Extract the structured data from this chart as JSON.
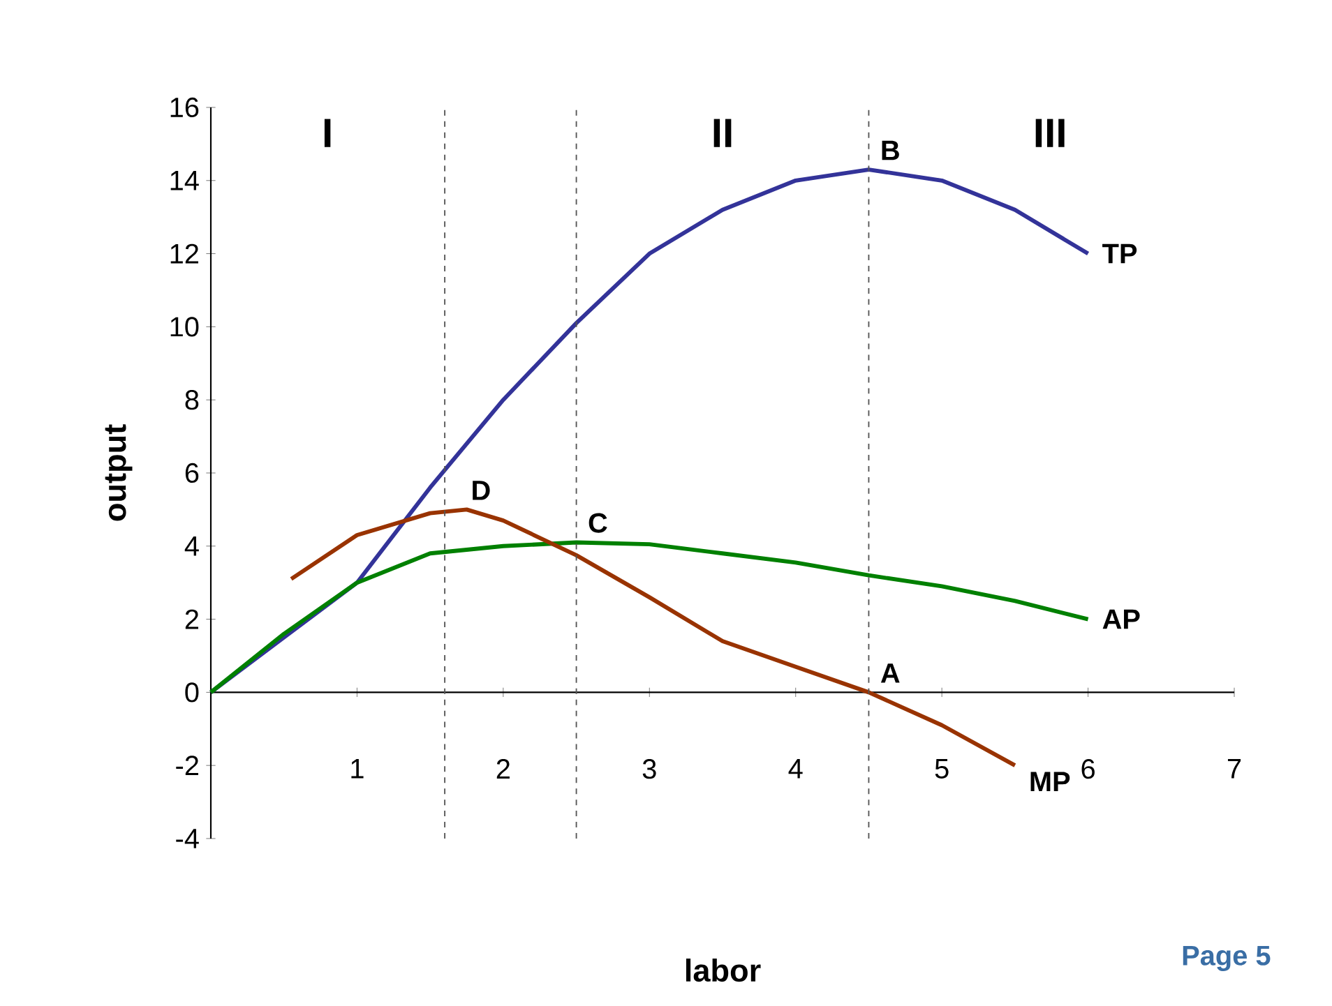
{
  "chart_data": {
    "type": "line",
    "xlabel": "labor",
    "ylabel": "output",
    "xlim": [
      0,
      7
    ],
    "ylim": [
      -4,
      16
    ],
    "xticks": [
      1,
      2,
      3,
      4,
      5,
      6,
      7
    ],
    "yticks": [
      -4,
      -2,
      0,
      2,
      4,
      6,
      8,
      10,
      12,
      14,
      16
    ],
    "grid": false,
    "legend": false,
    "marker": "none",
    "series": [
      {
        "name": "TP",
        "color": "#333399",
        "x": [
          0,
          0.5,
          1,
          1.5,
          2,
          2.5,
          3,
          3.5,
          4,
          4.5,
          5,
          5.5,
          6
        ],
        "values": [
          0,
          1.5,
          3,
          5.6,
          8,
          10.1,
          12,
          13.2,
          14,
          14.3,
          14,
          13.2,
          12
        ]
      },
      {
        "name": "AP",
        "color": "#008000",
        "x": [
          0,
          0.5,
          1,
          1.5,
          2,
          2.5,
          3,
          3.5,
          4,
          4.5,
          5,
          5.5,
          6
        ],
        "values": [
          0,
          1.6,
          3,
          3.8,
          4,
          4.1,
          4.05,
          3.8,
          3.55,
          3.2,
          2.9,
          2.5,
          2
        ]
      },
      {
        "name": "MP",
        "color": "#993300",
        "x": [
          0.55,
          1,
          1.5,
          1.75,
          2,
          2.5,
          3,
          3.5,
          4,
          4.5,
          5,
          5.5
        ],
        "values": [
          3.1,
          4.3,
          4.9,
          5,
          4.7,
          3.75,
          2.6,
          1.4,
          0.7,
          0,
          -0.9,
          -2
        ]
      }
    ],
    "ref_lines": [
      {
        "axis": "x",
        "value": 1.6,
        "color": "#555555",
        "line_style": "dashed"
      },
      {
        "axis": "x",
        "value": 2.5,
        "color": "#555555",
        "line_style": "dashed"
      },
      {
        "axis": "x",
        "value": 4.5,
        "color": "#555555",
        "line_style": "dashed"
      }
    ],
    "annotations": [
      "I",
      "II",
      "III",
      {
        "text": "B",
        "x": 4.5,
        "y": 14.3
      },
      {
        "text": "D",
        "x": 1.7,
        "y": 5
      },
      {
        "text": "C",
        "x": 2.5,
        "y": 4.1
      },
      {
        "text": "A",
        "x": 4.5,
        "y": 0
      },
      "Page 5"
    ]
  }
}
